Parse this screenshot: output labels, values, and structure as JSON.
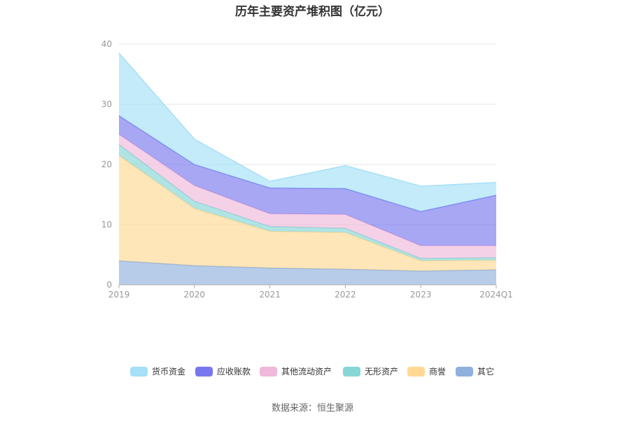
{
  "chart_data": {
    "type": "area",
    "stacked": true,
    "title": "历年主要资产堆积图（亿元）",
    "categories": [
      "2019",
      "2020",
      "2021",
      "2022",
      "2023",
      "2024Q1"
    ],
    "ylim": [
      0,
      40
    ],
    "yticks": [
      "0",
      "10",
      "20",
      "30",
      "40"
    ],
    "grid": true,
    "legend_position": "bottom",
    "series": [
      {
        "name": "其它",
        "color": "#8fb0dc",
        "values": [
          4.0,
          3.2,
          2.8,
          2.6,
          2.3,
          2.5
        ]
      },
      {
        "name": "商誉",
        "color": "#ffd993",
        "values": [
          17.5,
          9.5,
          6.1,
          6.1,
          1.7,
          1.6
        ]
      },
      {
        "name": "无形资产",
        "color": "#86d6d6",
        "values": [
          1.8,
          1.2,
          0.8,
          0.7,
          0.4,
          0.4
        ]
      },
      {
        "name": "其他流动资产",
        "color": "#f0b8da",
        "values": [
          1.7,
          2.6,
          2.1,
          2.3,
          2.1,
          2.0
        ]
      },
      {
        "name": "应收账款",
        "color": "#7878ee",
        "values": [
          3.1,
          3.5,
          4.3,
          4.3,
          5.7,
          8.4
        ]
      },
      {
        "name": "货币资金",
        "color": "#a5e0f7",
        "values": [
          10.4,
          4.2,
          1.1,
          3.8,
          4.2,
          2.1
        ]
      }
    ],
    "legend_order": [
      "货币资金",
      "应收账款",
      "其他流动资产",
      "无形资产",
      "商誉",
      "其它"
    ]
  },
  "source": "数据来源：恒生聚源"
}
